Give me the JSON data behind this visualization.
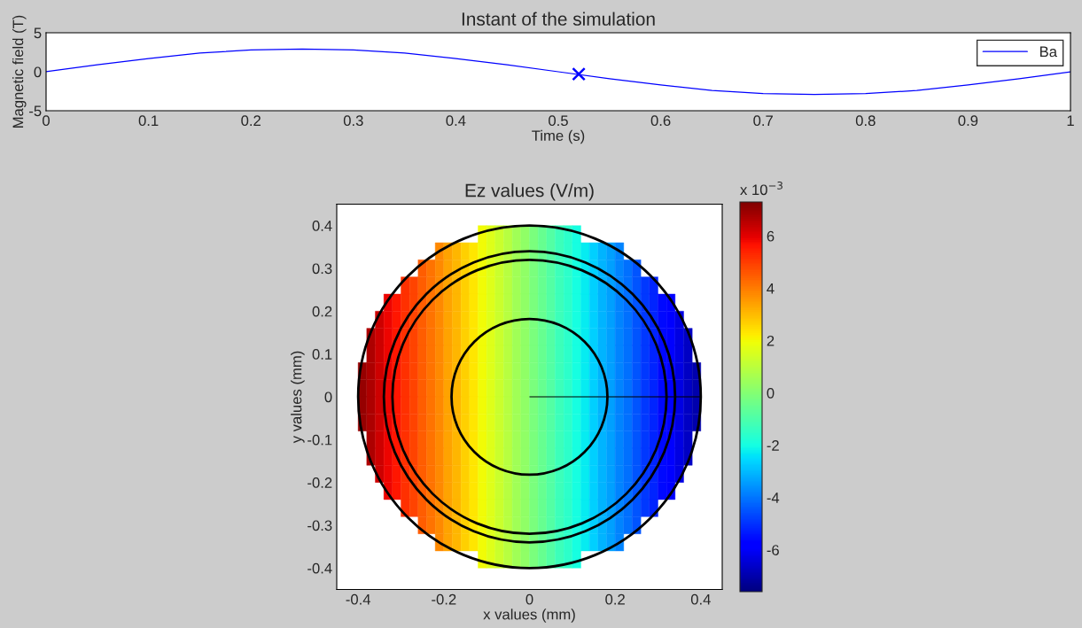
{
  "chart_data": [
    {
      "type": "line",
      "title": "Instant of the simulation",
      "xlabel": "Time (s)",
      "ylabel": "Magnetic field (T)",
      "x": [
        0,
        0.05,
        0.1,
        0.15,
        0.2,
        0.25,
        0.3,
        0.35,
        0.4,
        0.45,
        0.5,
        0.55,
        0.6,
        0.65,
        0.7,
        0.75,
        0.8,
        0.85,
        0.9,
        0.95,
        1
      ],
      "series": [
        {
          "name": "Ba",
          "color": "#0000ff",
          "values": [
            0,
            0.9,
            1.7,
            2.4,
            2.8,
            2.9,
            2.8,
            2.4,
            1.7,
            0.9,
            0,
            -0.9,
            -1.7,
            -2.4,
            -2.8,
            -2.9,
            -2.8,
            -2.4,
            -1.7,
            -0.9,
            0
          ]
        },
        {
          "type": "scatter",
          "x": [
            0.52
          ],
          "color": "#0000ff",
          "marker": "cross",
          "values": [
            -0.3
          ]
        }
      ],
      "xlim": [
        0,
        1
      ],
      "xticks": [
        0,
        0.1,
        0.2,
        0.3,
        0.4,
        0.5,
        0.6,
        0.7,
        0.8,
        0.9,
        1
      ],
      "ylim": [
        -5,
        5
      ],
      "yticks": [
        -5,
        0,
        5
      ],
      "legend": "top right",
      "grid": false
    },
    {
      "type": "heatmap",
      "title": "Ez values (V/m)",
      "xlabel": "x values (mm)",
      "ylabel": "y values (mm)",
      "x": [
        -0.39,
        -0.37,
        -0.35,
        -0.33,
        -0.31,
        -0.29,
        -0.27,
        -0.25,
        -0.23,
        -0.21,
        -0.19,
        -0.17,
        -0.15,
        -0.13,
        -0.11,
        -0.09,
        -0.07,
        -0.05,
        -0.03,
        -0.01,
        0.01,
        0.03,
        0.05,
        0.07,
        0.09,
        0.11,
        0.13,
        0.15,
        0.17,
        0.19,
        0.21,
        0.23,
        0.25,
        0.27,
        0.29,
        0.31,
        0.33,
        0.35,
        0.37,
        0.39
      ],
      "y": [
        0.38,
        0.34,
        0.3,
        0.26,
        0.22,
        0.18,
        0.14,
        0.1,
        0.06,
        0.02,
        -0.02,
        -0.06,
        -0.1,
        -0.14,
        -0.18,
        -0.22,
        -0.26,
        -0.3,
        -0.34,
        -0.38
      ],
      "cells": [
        [
          null,
          null,
          null,
          null,
          null,
          null,
          null,
          null,
          null,
          null,
          null,
          null,
          null,
          null,
          2.0,
          1.6,
          1.3,
          0.9,
          0.5,
          0.2,
          -0.2,
          -0.5,
          -0.9,
          -1.3,
          -1.6,
          -2.0,
          null,
          null,
          null,
          null,
          null,
          null,
          null,
          null,
          null,
          null,
          null,
          null,
          null,
          null
        ],
        [
          null,
          null,
          null,
          null,
          null,
          null,
          null,
          null,
          null,
          3.8,
          3.4,
          3.1,
          2.7,
          2.3,
          2.0,
          1.6,
          1.3,
          0.9,
          0.5,
          0.2,
          -0.2,
          -0.5,
          -0.9,
          -1.3,
          -1.6,
          -2.0,
          -2.3,
          -2.7,
          -3.1,
          -3.4,
          -3.8,
          null,
          null,
          null,
          null,
          null,
          null,
          null,
          null,
          null
        ],
        [
          null,
          null,
          null,
          null,
          null,
          null,
          null,
          4.5,
          4.1,
          3.8,
          3.4,
          3.1,
          2.7,
          2.3,
          2.0,
          1.6,
          1.3,
          0.9,
          0.5,
          0.2,
          -0.2,
          -0.5,
          -0.9,
          -1.3,
          -1.6,
          -2.0,
          -2.3,
          -2.7,
          -3.1,
          -3.4,
          -3.8,
          -4.1,
          -4.5,
          null,
          null,
          null,
          null,
          null,
          null,
          null
        ],
        [
          null,
          null,
          null,
          null,
          null,
          5.2,
          4.9,
          4.5,
          4.1,
          3.8,
          3.4,
          3.1,
          2.7,
          2.3,
          2.0,
          1.6,
          1.3,
          0.9,
          0.5,
          0.2,
          -0.2,
          -0.5,
          -0.9,
          -1.3,
          -1.6,
          -2.0,
          -2.3,
          -2.7,
          -3.1,
          -3.4,
          -3.8,
          -4.1,
          -4.5,
          -4.9,
          -5.2,
          null,
          null,
          null,
          null,
          null
        ],
        [
          null,
          null,
          null,
          5.9,
          5.6,
          5.2,
          4.9,
          4.5,
          4.1,
          3.8,
          3.4,
          3.1,
          2.7,
          2.3,
          2.0,
          1.6,
          1.3,
          0.9,
          0.5,
          0.2,
          -0.2,
          -0.5,
          -0.9,
          -1.3,
          -1.6,
          -2.0,
          -2.3,
          -2.7,
          -3.1,
          -3.4,
          -3.8,
          -4.1,
          -4.5,
          -4.9,
          -5.2,
          -5.6,
          -5.9,
          null,
          null,
          null
        ],
        [
          null,
          null,
          6.3,
          5.9,
          5.6,
          5.2,
          4.9,
          4.5,
          4.1,
          3.8,
          3.4,
          3.1,
          2.7,
          2.3,
          2.0,
          1.6,
          1.3,
          0.9,
          0.5,
          0.2,
          -0.2,
          -0.5,
          -0.9,
          -1.3,
          -1.6,
          -2.0,
          -2.3,
          -2.7,
          -3.1,
          -3.4,
          -3.8,
          -4.1,
          -4.5,
          -4.9,
          -5.2,
          -5.6,
          -5.9,
          -6.3,
          null,
          null
        ],
        [
          null,
          6.7,
          6.3,
          5.9,
          5.6,
          5.2,
          4.9,
          4.5,
          4.1,
          3.8,
          3.4,
          3.1,
          2.7,
          2.3,
          2.0,
          1.6,
          1.3,
          0.9,
          0.5,
          0.2,
          -0.2,
          -0.5,
          -0.9,
          -1.3,
          -1.6,
          -2.0,
          -2.3,
          -2.7,
          -3.1,
          -3.4,
          -3.8,
          -4.1,
          -4.5,
          -4.9,
          -5.2,
          -5.6,
          -5.9,
          -6.3,
          -6.7,
          null
        ],
        [
          null,
          6.7,
          6.3,
          5.9,
          5.6,
          5.2,
          4.9,
          4.5,
          4.1,
          3.8,
          3.4,
          3.1,
          2.7,
          2.3,
          2.0,
          1.6,
          1.3,
          0.9,
          0.5,
          0.2,
          -0.2,
          -0.5,
          -0.9,
          -1.3,
          -1.6,
          -2.0,
          -2.3,
          -2.7,
          -3.1,
          -3.4,
          -3.8,
          -4.1,
          -4.5,
          -4.9,
          -5.2,
          -5.6,
          -5.9,
          -6.3,
          -6.7,
          null
        ],
        [
          7.0,
          6.7,
          6.3,
          5.9,
          5.6,
          5.2,
          4.9,
          4.5,
          4.1,
          3.8,
          3.4,
          3.1,
          2.7,
          2.3,
          2.0,
          1.6,
          1.3,
          0.9,
          0.5,
          0.2,
          -0.2,
          -0.5,
          -0.9,
          -1.3,
          -1.6,
          -2.0,
          -2.3,
          -2.7,
          -3.1,
          -3.4,
          -3.8,
          -4.1,
          -4.5,
          -4.9,
          -5.2,
          -5.6,
          -5.9,
          -6.3,
          -6.7,
          -7.0
        ],
        [
          7.0,
          6.7,
          6.3,
          5.9,
          5.6,
          5.2,
          4.9,
          4.5,
          4.1,
          3.8,
          3.4,
          3.1,
          2.7,
          2.3,
          2.0,
          1.6,
          1.3,
          0.9,
          0.5,
          0.2,
          -0.2,
          -0.5,
          -0.9,
          -1.3,
          -1.6,
          -2.0,
          -2.3,
          -2.7,
          -3.1,
          -3.4,
          -3.8,
          -4.1,
          -4.5,
          -4.9,
          -5.2,
          -5.6,
          -5.9,
          -6.3,
          -6.7,
          -7.0
        ],
        [
          7.0,
          6.7,
          6.3,
          5.9,
          5.6,
          5.2,
          4.9,
          4.5,
          4.1,
          3.8,
          3.4,
          3.1,
          2.7,
          2.3,
          2.0,
          1.6,
          1.3,
          0.9,
          0.5,
          0.2,
          -0.2,
          -0.5,
          -0.9,
          -1.3,
          -1.6,
          -2.0,
          -2.3,
          -2.7,
          -3.1,
          -3.4,
          -3.8,
          -4.1,
          -4.5,
          -4.9,
          -5.2,
          -5.6,
          -5.9,
          -6.3,
          -6.7,
          -7.0
        ],
        [
          7.0,
          6.7,
          6.3,
          5.9,
          5.6,
          5.2,
          4.9,
          4.5,
          4.1,
          3.8,
          3.4,
          3.1,
          2.7,
          2.3,
          2.0,
          1.6,
          1.3,
          0.9,
          0.5,
          0.2,
          -0.2,
          -0.5,
          -0.9,
          -1.3,
          -1.6,
          -2.0,
          -2.3,
          -2.7,
          -3.1,
          -3.4,
          -3.8,
          -4.1,
          -4.5,
          -4.9,
          -5.2,
          -5.6,
          -5.9,
          -6.3,
          -6.7,
          -7.0
        ],
        [
          null,
          6.7,
          6.3,
          5.9,
          5.6,
          5.2,
          4.9,
          4.5,
          4.1,
          3.8,
          3.4,
          3.1,
          2.7,
          2.3,
          2.0,
          1.6,
          1.3,
          0.9,
          0.5,
          0.2,
          -0.2,
          -0.5,
          -0.9,
          -1.3,
          -1.6,
          -2.0,
          -2.3,
          -2.7,
          -3.1,
          -3.4,
          -3.8,
          -4.1,
          -4.5,
          -4.9,
          -5.2,
          -5.6,
          -5.9,
          -6.3,
          -6.7,
          null
        ],
        [
          null,
          6.7,
          6.3,
          5.9,
          5.6,
          5.2,
          4.9,
          4.5,
          4.1,
          3.8,
          3.4,
          3.1,
          2.7,
          2.3,
          2.0,
          1.6,
          1.3,
          0.9,
          0.5,
          0.2,
          -0.2,
          -0.5,
          -0.9,
          -1.3,
          -1.6,
          -2.0,
          -2.3,
          -2.7,
          -3.1,
          -3.4,
          -3.8,
          -4.1,
          -4.5,
          -4.9,
          -5.2,
          -5.6,
          -5.9,
          -6.3,
          -6.7,
          null
        ],
        [
          null,
          null,
          6.3,
          5.9,
          5.6,
          5.2,
          4.9,
          4.5,
          4.1,
          3.8,
          3.4,
          3.1,
          2.7,
          2.3,
          2.0,
          1.6,
          1.3,
          0.9,
          0.5,
          0.2,
          -0.2,
          -0.5,
          -0.9,
          -1.3,
          -1.6,
          -2.0,
          -2.3,
          -2.7,
          -3.1,
          -3.4,
          -3.8,
          -4.1,
          -4.5,
          -4.9,
          -5.2,
          -5.6,
          -5.9,
          -6.3,
          null,
          null
        ],
        [
          null,
          null,
          null,
          5.9,
          5.6,
          5.2,
          4.9,
          4.5,
          4.1,
          3.8,
          3.4,
          3.1,
          2.7,
          2.3,
          2.0,
          1.6,
          1.3,
          0.9,
          0.5,
          0.2,
          -0.2,
          -0.5,
          -0.9,
          -1.3,
          -1.6,
          -2.0,
          -2.3,
          -2.7,
          -3.1,
          -3.4,
          -3.8,
          -4.1,
          -4.5,
          -4.9,
          -5.2,
          -5.6,
          -5.9,
          null,
          null,
          null
        ],
        [
          null,
          null,
          null,
          null,
          null,
          5.2,
          4.9,
          4.5,
          4.1,
          3.8,
          3.4,
          3.1,
          2.7,
          2.3,
          2.0,
          1.6,
          1.3,
          0.9,
          0.5,
          0.2,
          -0.2,
          -0.5,
          -0.9,
          -1.3,
          -1.6,
          -2.0,
          -2.3,
          -2.7,
          -3.1,
          -3.4,
          -3.8,
          -4.1,
          -4.5,
          -4.9,
          -5.2,
          null,
          null,
          null,
          null,
          null
        ],
        [
          null,
          null,
          null,
          null,
          null,
          null,
          null,
          4.5,
          4.1,
          3.8,
          3.4,
          3.1,
          2.7,
          2.3,
          2.0,
          1.6,
          1.3,
          0.9,
          0.5,
          0.2,
          -0.2,
          -0.5,
          -0.9,
          -1.3,
          -1.6,
          -2.0,
          -2.3,
          -2.7,
          -3.1,
          -3.4,
          -3.8,
          -4.1,
          -4.5,
          null,
          null,
          null,
          null,
          null,
          null,
          null
        ],
        [
          null,
          null,
          null,
          null,
          null,
          null,
          null,
          null,
          null,
          3.8,
          3.4,
          3.1,
          2.7,
          2.3,
          2.0,
          1.6,
          1.3,
          0.9,
          0.5,
          0.2,
          -0.2,
          -0.5,
          -0.9,
          -1.3,
          -1.6,
          -2.0,
          -2.3,
          -2.7,
          -3.1,
          -3.4,
          -3.8,
          null,
          null,
          null,
          null,
          null,
          null,
          null,
          null,
          null
        ],
        [
          null,
          null,
          null,
          null,
          null,
          null,
          null,
          null,
          null,
          null,
          null,
          null,
          null,
          null,
          2.0,
          1.6,
          1.3,
          0.9,
          0.5,
          0.2,
          -0.2,
          -0.5,
          -0.9,
          -1.3,
          -1.6,
          -2.0,
          null,
          null,
          null,
          null,
          null,
          null,
          null,
          null,
          null,
          null,
          null,
          null,
          null,
          null
        ]
      ],
      "clim": [
        -7.6,
        7.3
      ],
      "cticks": [
        -6,
        -4,
        -2,
        0,
        2,
        4,
        6
      ],
      "clabel": "x 10$^{−3}$",
      "xlim": [
        -0.45,
        0.45
      ],
      "xticks": [
        -0.4,
        -0.2,
        0,
        0.2,
        0.4
      ],
      "ylim": [
        -0.45,
        0.45
      ],
      "yticks": [
        -0.4,
        -0.3,
        -0.2,
        -0.1,
        0,
        0.1,
        0.2,
        0.3,
        0.4
      ]
    }
  ]
}
